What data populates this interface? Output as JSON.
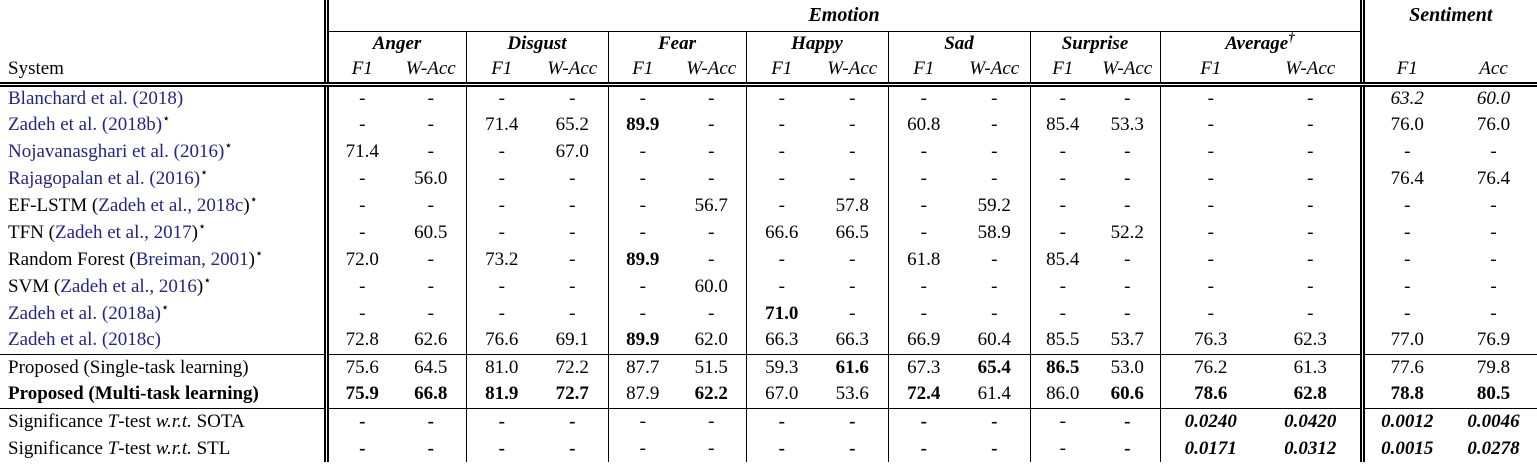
{
  "header": {
    "system_label": "System",
    "emotion_label": "Emotion",
    "sentiment_label": "Sentiment",
    "groups": [
      {
        "label": "Anger",
        "cols": [
          "F1",
          "W-Acc"
        ]
      },
      {
        "label": "Disgust",
        "cols": [
          "F1",
          "W-Acc"
        ]
      },
      {
        "label": "Fear",
        "cols": [
          "F1",
          "W-Acc"
        ]
      },
      {
        "label": "Happy",
        "cols": [
          "F1",
          "W-Acc"
        ]
      },
      {
        "label": "Sad",
        "cols": [
          "F1",
          "W-Acc"
        ]
      },
      {
        "label": "Surprise",
        "cols": [
          "F1",
          "W-Acc"
        ]
      },
      {
        "label": "Average",
        "sup": "†",
        "cols": [
          "F1",
          "W-Acc"
        ]
      }
    ],
    "sentiment_cols": [
      "F1",
      "Acc"
    ]
  },
  "colors": {
    "citation_blue": "#23238C",
    "text_black": "#000000"
  },
  "table": {
    "baseline_rows": [
      {
        "system": [
          {
            "t": "Blanchard et al. (2018)",
            "cite": true
          }
        ],
        "cells": [
          {
            "v": "-"
          },
          {
            "v": "-"
          },
          {
            "v": "-"
          },
          {
            "v": "-"
          },
          {
            "v": "-"
          },
          {
            "v": "-"
          },
          {
            "v": "-"
          },
          {
            "v": "-"
          },
          {
            "v": "-"
          },
          {
            "v": "-"
          },
          {
            "v": "-"
          },
          {
            "v": "-"
          },
          {
            "v": "-"
          },
          {
            "v": "-"
          },
          {
            "v": "63.2",
            "i": true
          },
          {
            "v": "60.0",
            "i": true
          }
        ]
      },
      {
        "system": [
          {
            "t": "Zadeh et al. (2018b)",
            "cite": true
          },
          {
            "t": "⋆",
            "sup": true
          }
        ],
        "cells": [
          {
            "v": "-"
          },
          {
            "v": "-"
          },
          {
            "v": "71.4"
          },
          {
            "v": "65.2"
          },
          {
            "v": "89.9",
            "b": true
          },
          {
            "v": "-"
          },
          {
            "v": "-"
          },
          {
            "v": "-"
          },
          {
            "v": "60.8"
          },
          {
            "v": "-"
          },
          {
            "v": "85.4"
          },
          {
            "v": "53.3"
          },
          {
            "v": "-"
          },
          {
            "v": "-"
          },
          {
            "v": "76.0"
          },
          {
            "v": "76.0"
          }
        ]
      },
      {
        "system": [
          {
            "t": "Nojavanasghari et al. (2016)",
            "cite": true
          },
          {
            "t": "⋆",
            "sup": true
          }
        ],
        "cells": [
          {
            "v": "71.4"
          },
          {
            "v": "-"
          },
          {
            "v": "-"
          },
          {
            "v": "67.0"
          },
          {
            "v": "-"
          },
          {
            "v": "-"
          },
          {
            "v": "-"
          },
          {
            "v": "-"
          },
          {
            "v": "-"
          },
          {
            "v": "-"
          },
          {
            "v": "-"
          },
          {
            "v": "-"
          },
          {
            "v": "-"
          },
          {
            "v": "-"
          },
          {
            "v": "-"
          },
          {
            "v": "-"
          }
        ]
      },
      {
        "system": [
          {
            "t": "Rajagopalan et al. (2016)",
            "cite": true
          },
          {
            "t": "⋆",
            "sup": true
          }
        ],
        "cells": [
          {
            "v": "-"
          },
          {
            "v": "56.0"
          },
          {
            "v": "-"
          },
          {
            "v": "-"
          },
          {
            "v": "-"
          },
          {
            "v": "-"
          },
          {
            "v": "-"
          },
          {
            "v": "-"
          },
          {
            "v": "-"
          },
          {
            "v": "-"
          },
          {
            "v": "-"
          },
          {
            "v": "-"
          },
          {
            "v": "-"
          },
          {
            "v": "-"
          },
          {
            "v": "76.4"
          },
          {
            "v": "76.4"
          }
        ]
      },
      {
        "system": [
          {
            "t": "EF-LSTM ("
          },
          {
            "t": "Zadeh et al., 2018c",
            "cite": true
          },
          {
            "t": ")"
          },
          {
            "t": "⋆",
            "sup": true
          }
        ],
        "cells": [
          {
            "v": "-"
          },
          {
            "v": "-"
          },
          {
            "v": "-"
          },
          {
            "v": "-"
          },
          {
            "v": "-"
          },
          {
            "v": "56.7"
          },
          {
            "v": "-"
          },
          {
            "v": "57.8"
          },
          {
            "v": "-"
          },
          {
            "v": "59.2"
          },
          {
            "v": "-"
          },
          {
            "v": "-"
          },
          {
            "v": "-"
          },
          {
            "v": "-"
          },
          {
            "v": "-"
          },
          {
            "v": "-"
          }
        ]
      },
      {
        "system": [
          {
            "t": "TFN ("
          },
          {
            "t": "Zadeh et al., 2017",
            "cite": true
          },
          {
            "t": ")"
          },
          {
            "t": "⋆",
            "sup": true
          }
        ],
        "cells": [
          {
            "v": "-"
          },
          {
            "v": "60.5"
          },
          {
            "v": "-"
          },
          {
            "v": "-"
          },
          {
            "v": "-"
          },
          {
            "v": "-"
          },
          {
            "v": "66.6"
          },
          {
            "v": "66.5"
          },
          {
            "v": "-"
          },
          {
            "v": "58.9"
          },
          {
            "v": "-"
          },
          {
            "v": "52.2"
          },
          {
            "v": "-"
          },
          {
            "v": "-"
          },
          {
            "v": "-"
          },
          {
            "v": "-"
          }
        ]
      },
      {
        "system": [
          {
            "t": "Random Forest ("
          },
          {
            "t": "Breiman, 2001",
            "cite": true
          },
          {
            "t": ")"
          },
          {
            "t": "⋆",
            "sup": true
          }
        ],
        "cells": [
          {
            "v": "72.0"
          },
          {
            "v": "-"
          },
          {
            "v": "73.2"
          },
          {
            "v": "-"
          },
          {
            "v": "89.9",
            "b": true
          },
          {
            "v": "-"
          },
          {
            "v": "-"
          },
          {
            "v": "-"
          },
          {
            "v": "61.8"
          },
          {
            "v": "-"
          },
          {
            "v": "85.4"
          },
          {
            "v": "-"
          },
          {
            "v": "-"
          },
          {
            "v": "-"
          },
          {
            "v": "-"
          },
          {
            "v": "-"
          }
        ]
      },
      {
        "system": [
          {
            "t": "SVM ("
          },
          {
            "t": "Zadeh et al., 2016",
            "cite": true
          },
          {
            "t": ")"
          },
          {
            "t": "⋆",
            "sup": true
          }
        ],
        "cells": [
          {
            "v": "-"
          },
          {
            "v": "-"
          },
          {
            "v": "-"
          },
          {
            "v": "-"
          },
          {
            "v": "-"
          },
          {
            "v": "60.0"
          },
          {
            "v": "-"
          },
          {
            "v": "-"
          },
          {
            "v": "-"
          },
          {
            "v": "-"
          },
          {
            "v": "-"
          },
          {
            "v": "-"
          },
          {
            "v": "-"
          },
          {
            "v": "-"
          },
          {
            "v": "-"
          },
          {
            "v": "-"
          }
        ]
      },
      {
        "system": [
          {
            "t": "Zadeh et al. (2018a)",
            "cite": true
          },
          {
            "t": "⋆",
            "sup": true
          }
        ],
        "cells": [
          {
            "v": "-"
          },
          {
            "v": "-"
          },
          {
            "v": "-"
          },
          {
            "v": "-"
          },
          {
            "v": "-"
          },
          {
            "v": "-"
          },
          {
            "v": "71.0",
            "b": true
          },
          {
            "v": "-"
          },
          {
            "v": "-"
          },
          {
            "v": "-"
          },
          {
            "v": "-"
          },
          {
            "v": "-"
          },
          {
            "v": "-"
          },
          {
            "v": "-"
          },
          {
            "v": "-"
          },
          {
            "v": "-"
          }
        ]
      },
      {
        "system": [
          {
            "t": "Zadeh et al. (2018c)",
            "cite": true
          }
        ],
        "cells": [
          {
            "v": "72.8"
          },
          {
            "v": "62.6"
          },
          {
            "v": "76.6"
          },
          {
            "v": "69.1"
          },
          {
            "v": "89.9",
            "b": true
          },
          {
            "v": "62.0"
          },
          {
            "v": "66.3"
          },
          {
            "v": "66.3"
          },
          {
            "v": "66.9"
          },
          {
            "v": "60.4"
          },
          {
            "v": "85.5"
          },
          {
            "v": "53.7"
          },
          {
            "v": "76.3"
          },
          {
            "v": "62.3"
          },
          {
            "v": "77.0"
          },
          {
            "v": "76.9"
          }
        ]
      }
    ],
    "proposed_rows": [
      {
        "system": [
          {
            "t": "Proposed (Single-task learning)"
          }
        ],
        "cells": [
          {
            "v": "75.6"
          },
          {
            "v": "64.5"
          },
          {
            "v": "81.0"
          },
          {
            "v": "72.2"
          },
          {
            "v": "87.7"
          },
          {
            "v": "51.5"
          },
          {
            "v": "59.3"
          },
          {
            "v": "61.6",
            "b": true
          },
          {
            "v": "67.3"
          },
          {
            "v": "65.4",
            "b": true
          },
          {
            "v": "86.5",
            "b": true
          },
          {
            "v": "53.0"
          },
          {
            "v": "76.2"
          },
          {
            "v": "61.3"
          },
          {
            "v": "77.6"
          },
          {
            "v": "79.8"
          }
        ]
      },
      {
        "system": [
          {
            "t": "Proposed (Multi-task learning)"
          }
        ],
        "bold_name": true,
        "cells": [
          {
            "v": "75.9",
            "b": true
          },
          {
            "v": "66.8",
            "b": true
          },
          {
            "v": "81.9",
            "b": true
          },
          {
            "v": "72.7",
            "b": true
          },
          {
            "v": "87.9"
          },
          {
            "v": "62.2",
            "b": true
          },
          {
            "v": "67.0"
          },
          {
            "v": "53.6"
          },
          {
            "v": "72.4",
            "b": true
          },
          {
            "v": "61.4"
          },
          {
            "v": "86.0"
          },
          {
            "v": "60.6",
            "b": true
          },
          {
            "v": "78.6",
            "b": true
          },
          {
            "v": "62.8",
            "b": true
          },
          {
            "v": "78.8",
            "b": true
          },
          {
            "v": "80.5",
            "b": true
          }
        ]
      }
    ],
    "significance_rows": [
      {
        "system": [
          {
            "t": "Significance "
          },
          {
            "t": "T",
            "i": true
          },
          {
            "t": "-test "
          },
          {
            "t": "w.r.t.",
            "i": true
          },
          {
            "t": " SOTA"
          }
        ],
        "cells": [
          {
            "v": "-",
            "b": true
          },
          {
            "v": "-",
            "b": true
          },
          {
            "v": "-",
            "b": true
          },
          {
            "v": "-",
            "b": true
          },
          {
            "v": "-"
          },
          {
            "v": "-"
          },
          {
            "v": "-",
            "b": true
          },
          {
            "v": "-",
            "b": true
          },
          {
            "v": "-",
            "b": true
          },
          {
            "v": "-",
            "b": true
          },
          {
            "v": "-"
          },
          {
            "v": "-",
            "b": true
          },
          {
            "v": "0.0240",
            "b": true,
            "i": true
          },
          {
            "v": "0.0420",
            "b": true,
            "i": true
          },
          {
            "v": "0.0012",
            "b": true,
            "i": true
          },
          {
            "v": "0.0046",
            "b": true,
            "i": true
          }
        ]
      },
      {
        "system": [
          {
            "t": "Significance "
          },
          {
            "t": "T",
            "i": true
          },
          {
            "t": "-test "
          },
          {
            "t": "w.r.t.",
            "i": true
          },
          {
            "t": " STL"
          }
        ],
        "cells": [
          {
            "v": "-",
            "b": true
          },
          {
            "v": "-",
            "b": true
          },
          {
            "v": "-",
            "b": true
          },
          {
            "v": "-",
            "b": true
          },
          {
            "v": "-"
          },
          {
            "v": "-"
          },
          {
            "v": "-",
            "b": true
          },
          {
            "v": "-",
            "b": true
          },
          {
            "v": "-",
            "b": true
          },
          {
            "v": "-",
            "b": true
          },
          {
            "v": "-"
          },
          {
            "v": "-",
            "b": true
          },
          {
            "v": "0.0171",
            "b": true,
            "i": true
          },
          {
            "v": "0.0312",
            "b": true,
            "i": true
          },
          {
            "v": "0.0015",
            "b": true,
            "i": true
          },
          {
            "v": "0.0278",
            "b": true,
            "i": true
          }
        ]
      }
    ]
  }
}
